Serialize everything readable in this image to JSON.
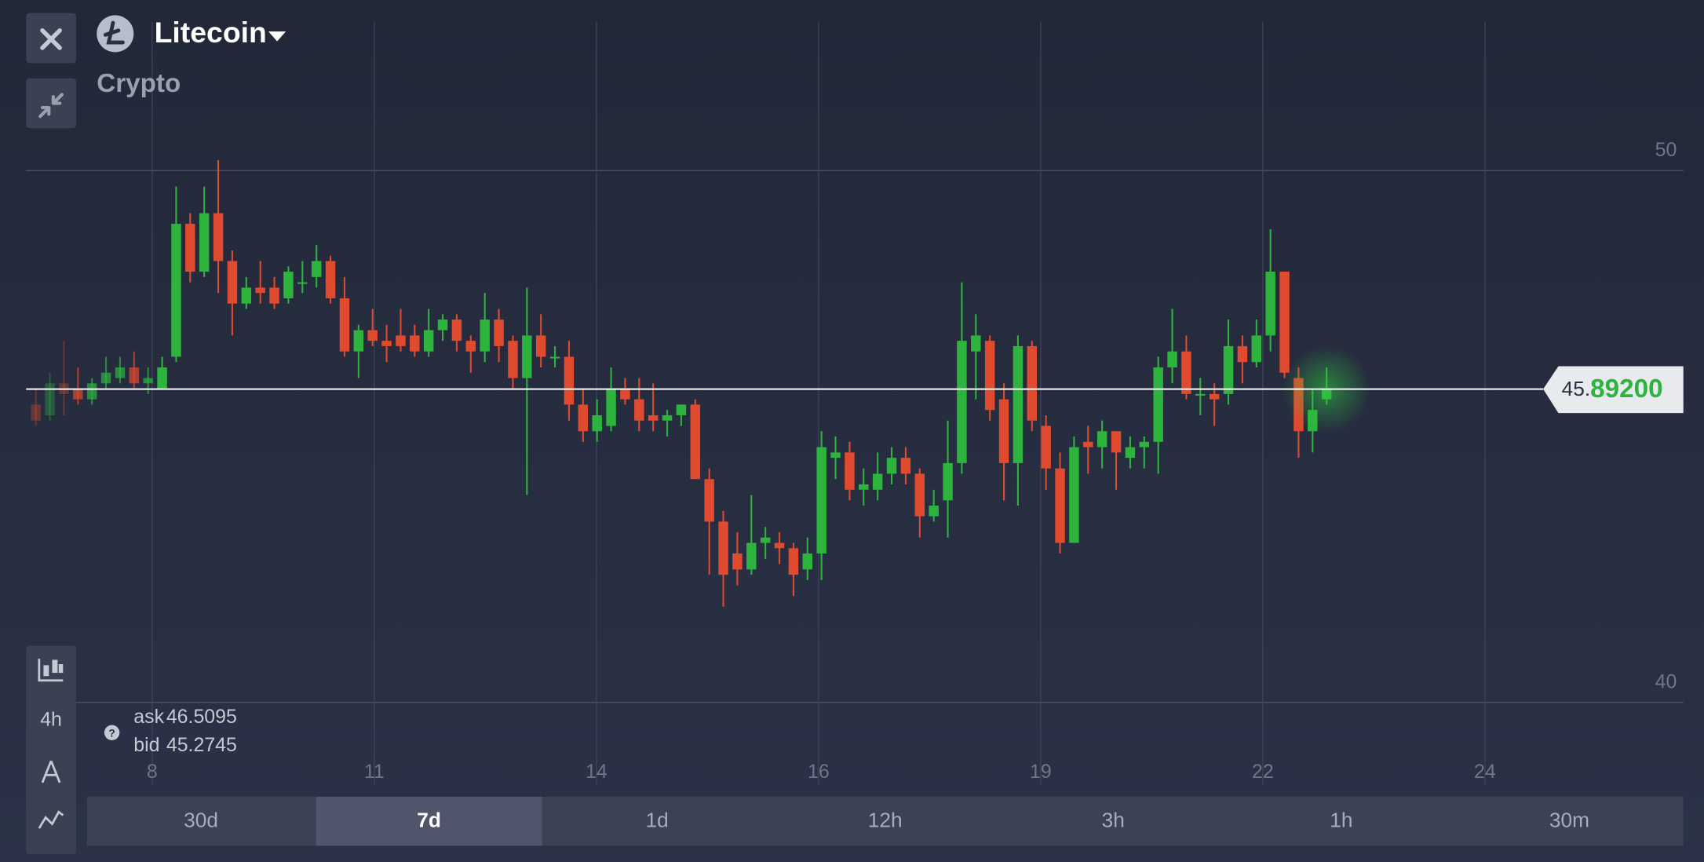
{
  "header": {
    "title": "Litecoin",
    "subtitle": "Crypto"
  },
  "toolbar": {
    "interval": "4h"
  },
  "quote": {
    "ask_label": "ask",
    "ask": 46.5095,
    "bid_label": "bid",
    "bid": 45.2745
  },
  "timeframes": {
    "labels": [
      "30d",
      "7d",
      "1d",
      "12h",
      "3h",
      "1h",
      "30m"
    ],
    "active_index": 1
  },
  "chart_data": {
    "type": "candlestick",
    "up_color": "#2eb33e",
    "down_color": "#e04a2f",
    "grid": true,
    "ylim": [
      38.9,
      52.8
    ],
    "yticks": [
      40,
      50
    ],
    "xticks": [
      "8",
      "11",
      "14",
      "16",
      "19",
      "22",
      "24"
    ],
    "current_price": {
      "value": 45.892,
      "label_int": "45.",
      "label_frac": "89200"
    },
    "candles": [
      {
        "open": 45.6,
        "high": 45.9,
        "low": 45.2,
        "close": 45.3
      },
      {
        "open": 45.4,
        "high": 46.2,
        "low": 45.3,
        "close": 46.0
      },
      {
        "open": 46.0,
        "high": 46.8,
        "low": 45.4,
        "close": 45.8
      },
      {
        "open": 45.9,
        "high": 46.3,
        "low": 45.6,
        "close": 45.7
      },
      {
        "open": 45.7,
        "high": 46.1,
        "low": 45.6,
        "close": 46.0
      },
      {
        "open": 46.0,
        "high": 46.5,
        "low": 45.9,
        "close": 46.2
      },
      {
        "open": 46.1,
        "high": 46.5,
        "low": 46.0,
        "close": 46.3
      },
      {
        "open": 46.3,
        "high": 46.6,
        "low": 45.9,
        "close": 46.0
      },
      {
        "open": 46.0,
        "high": 46.3,
        "low": 45.8,
        "close": 46.1
      },
      {
        "open": 45.9,
        "high": 46.5,
        "low": 45.9,
        "close": 46.3
      },
      {
        "open": 46.5,
        "high": 49.7,
        "low": 46.4,
        "close": 49.0
      },
      {
        "open": 49.0,
        "high": 49.2,
        "low": 47.9,
        "close": 48.1
      },
      {
        "open": 48.1,
        "high": 49.7,
        "low": 48.0,
        "close": 49.2
      },
      {
        "open": 49.2,
        "high": 50.2,
        "low": 47.7,
        "close": 48.3
      },
      {
        "open": 48.3,
        "high": 48.5,
        "low": 46.9,
        "close": 47.5
      },
      {
        "open": 47.5,
        "high": 48.0,
        "low": 47.4,
        "close": 47.8
      },
      {
        "open": 47.8,
        "high": 48.3,
        "low": 47.5,
        "close": 47.7
      },
      {
        "open": 47.8,
        "high": 48.0,
        "low": 47.4,
        "close": 47.5
      },
      {
        "open": 47.6,
        "high": 48.2,
        "low": 47.5,
        "close": 48.1
      },
      {
        "open": 47.9,
        "high": 48.3,
        "low": 47.7,
        "close": 47.9
      },
      {
        "open": 48.0,
        "high": 48.6,
        "low": 47.8,
        "close": 48.3
      },
      {
        "open": 48.3,
        "high": 48.4,
        "low": 47.5,
        "close": 47.6
      },
      {
        "open": 47.6,
        "high": 48.0,
        "low": 46.5,
        "close": 46.6
      },
      {
        "open": 46.6,
        "high": 47.1,
        "low": 46.1,
        "close": 47.0
      },
      {
        "open": 47.0,
        "high": 47.4,
        "low": 46.7,
        "close": 46.8
      },
      {
        "open": 46.8,
        "high": 47.1,
        "low": 46.4,
        "close": 46.7
      },
      {
        "open": 46.9,
        "high": 47.4,
        "low": 46.6,
        "close": 46.7
      },
      {
        "open": 46.9,
        "high": 47.1,
        "low": 46.5,
        "close": 46.6
      },
      {
        "open": 46.6,
        "high": 47.4,
        "low": 46.5,
        "close": 47.0
      },
      {
        "open": 47.0,
        "high": 47.3,
        "low": 46.8,
        "close": 47.2
      },
      {
        "open": 47.2,
        "high": 47.3,
        "low": 46.6,
        "close": 46.8
      },
      {
        "open": 46.8,
        "high": 46.9,
        "low": 46.2,
        "close": 46.6
      },
      {
        "open": 46.6,
        "high": 47.7,
        "low": 46.4,
        "close": 47.2
      },
      {
        "open": 47.2,
        "high": 47.4,
        "low": 46.4,
        "close": 46.7
      },
      {
        "open": 46.8,
        "high": 46.9,
        "low": 45.9,
        "close": 46.1
      },
      {
        "open": 46.1,
        "high": 47.8,
        "low": 43.9,
        "close": 46.9
      },
      {
        "open": 46.9,
        "high": 47.3,
        "low": 46.3,
        "close": 46.5
      },
      {
        "open": 46.5,
        "high": 46.7,
        "low": 46.3,
        "close": 46.5
      },
      {
        "open": 46.5,
        "high": 46.8,
        "low": 45.3,
        "close": 45.6
      },
      {
        "open": 45.6,
        "high": 45.9,
        "low": 44.9,
        "close": 45.1
      },
      {
        "open": 45.1,
        "high": 45.7,
        "low": 44.9,
        "close": 45.4
      },
      {
        "open": 45.2,
        "high": 46.3,
        "low": 45.1,
        "close": 45.9
      },
      {
        "open": 45.9,
        "high": 46.1,
        "low": 45.6,
        "close": 45.7
      },
      {
        "open": 45.7,
        "high": 46.1,
        "low": 45.1,
        "close": 45.3
      },
      {
        "open": 45.4,
        "high": 46.0,
        "low": 45.1,
        "close": 45.3
      },
      {
        "open": 45.3,
        "high": 45.5,
        "low": 45.0,
        "close": 45.4
      },
      {
        "open": 45.4,
        "high": 45.6,
        "low": 45.2,
        "close": 45.6
      },
      {
        "open": 45.6,
        "high": 45.7,
        "low": 44.2,
        "close": 44.2
      },
      {
        "open": 44.2,
        "high": 44.4,
        "low": 42.4,
        "close": 43.4
      },
      {
        "open": 43.4,
        "high": 43.6,
        "low": 41.8,
        "close": 42.4
      },
      {
        "open": 42.8,
        "high": 43.2,
        "low": 42.2,
        "close": 42.5
      },
      {
        "open": 42.5,
        "high": 43.9,
        "low": 42.4,
        "close": 43.0
      },
      {
        "open": 43.0,
        "high": 43.3,
        "low": 42.7,
        "close": 43.1
      },
      {
        "open": 43.0,
        "high": 43.2,
        "low": 42.6,
        "close": 42.9
      },
      {
        "open": 42.9,
        "high": 43.0,
        "low": 42.0,
        "close": 42.4
      },
      {
        "open": 42.5,
        "high": 43.1,
        "low": 42.3,
        "close": 42.8
      },
      {
        "open": 42.8,
        "high": 45.1,
        "low": 42.3,
        "close": 44.8
      },
      {
        "open": 44.6,
        "high": 45.0,
        "low": 44.2,
        "close": 44.7
      },
      {
        "open": 44.7,
        "high": 44.9,
        "low": 43.8,
        "close": 44.0
      },
      {
        "open": 44.0,
        "high": 44.4,
        "low": 43.7,
        "close": 44.1
      },
      {
        "open": 44.0,
        "high": 44.7,
        "low": 43.8,
        "close": 44.3
      },
      {
        "open": 44.3,
        "high": 44.8,
        "low": 44.1,
        "close": 44.6
      },
      {
        "open": 44.6,
        "high": 44.8,
        "low": 44.1,
        "close": 44.3
      },
      {
        "open": 44.3,
        "high": 44.4,
        "low": 43.1,
        "close": 43.5
      },
      {
        "open": 43.5,
        "high": 44.0,
        "low": 43.4,
        "close": 43.7
      },
      {
        "open": 43.8,
        "high": 45.3,
        "low": 43.1,
        "close": 44.5
      },
      {
        "open": 44.5,
        "high": 47.9,
        "low": 44.3,
        "close": 46.8
      },
      {
        "open": 46.6,
        "high": 47.3,
        "low": 45.7,
        "close": 46.9
      },
      {
        "open": 46.8,
        "high": 46.9,
        "low": 45.3,
        "close": 45.5
      },
      {
        "open": 45.7,
        "high": 46.0,
        "low": 43.8,
        "close": 44.5
      },
      {
        "open": 44.5,
        "high": 46.9,
        "low": 43.7,
        "close": 46.7
      },
      {
        "open": 46.7,
        "high": 46.8,
        "low": 45.1,
        "close": 45.3
      },
      {
        "open": 45.2,
        "high": 45.4,
        "low": 44.0,
        "close": 44.4
      },
      {
        "open": 44.4,
        "high": 44.7,
        "low": 42.8,
        "close": 43.0
      },
      {
        "open": 43.0,
        "high": 45.0,
        "low": 43.0,
        "close": 44.8
      },
      {
        "open": 44.9,
        "high": 45.2,
        "low": 44.3,
        "close": 44.8
      },
      {
        "open": 44.8,
        "high": 45.3,
        "low": 44.4,
        "close": 45.1
      },
      {
        "open": 45.1,
        "high": 45.1,
        "low": 44.0,
        "close": 44.7
      },
      {
        "open": 44.6,
        "high": 45.0,
        "low": 44.4,
        "close": 44.8
      },
      {
        "open": 44.8,
        "high": 45.0,
        "low": 44.4,
        "close": 44.9
      },
      {
        "open": 44.9,
        "high": 46.5,
        "low": 44.3,
        "close": 46.3
      },
      {
        "open": 46.3,
        "high": 47.4,
        "low": 46.0,
        "close": 46.6
      },
      {
        "open": 46.6,
        "high": 46.9,
        "low": 45.7,
        "close": 45.8
      },
      {
        "open": 45.8,
        "high": 46.1,
        "low": 45.4,
        "close": 45.8
      },
      {
        "open": 45.8,
        "high": 46.0,
        "low": 45.2,
        "close": 45.7
      },
      {
        "open": 45.8,
        "high": 47.2,
        "low": 45.6,
        "close": 46.7
      },
      {
        "open": 46.7,
        "high": 46.9,
        "low": 46.0,
        "close": 46.4
      },
      {
        "open": 46.4,
        "high": 47.2,
        "low": 46.3,
        "close": 46.9
      },
      {
        "open": 46.9,
        "high": 48.9,
        "low": 46.6,
        "close": 48.1
      },
      {
        "open": 48.1,
        "high": 48.1,
        "low": 46.1,
        "close": 46.2
      },
      {
        "open": 46.1,
        "high": 46.3,
        "low": 44.6,
        "close": 45.1
      },
      {
        "open": 45.1,
        "high": 45.9,
        "low": 44.7,
        "close": 45.5
      },
      {
        "open": 45.7,
        "high": 46.3,
        "low": 45.6,
        "close": 45.9
      }
    ]
  }
}
